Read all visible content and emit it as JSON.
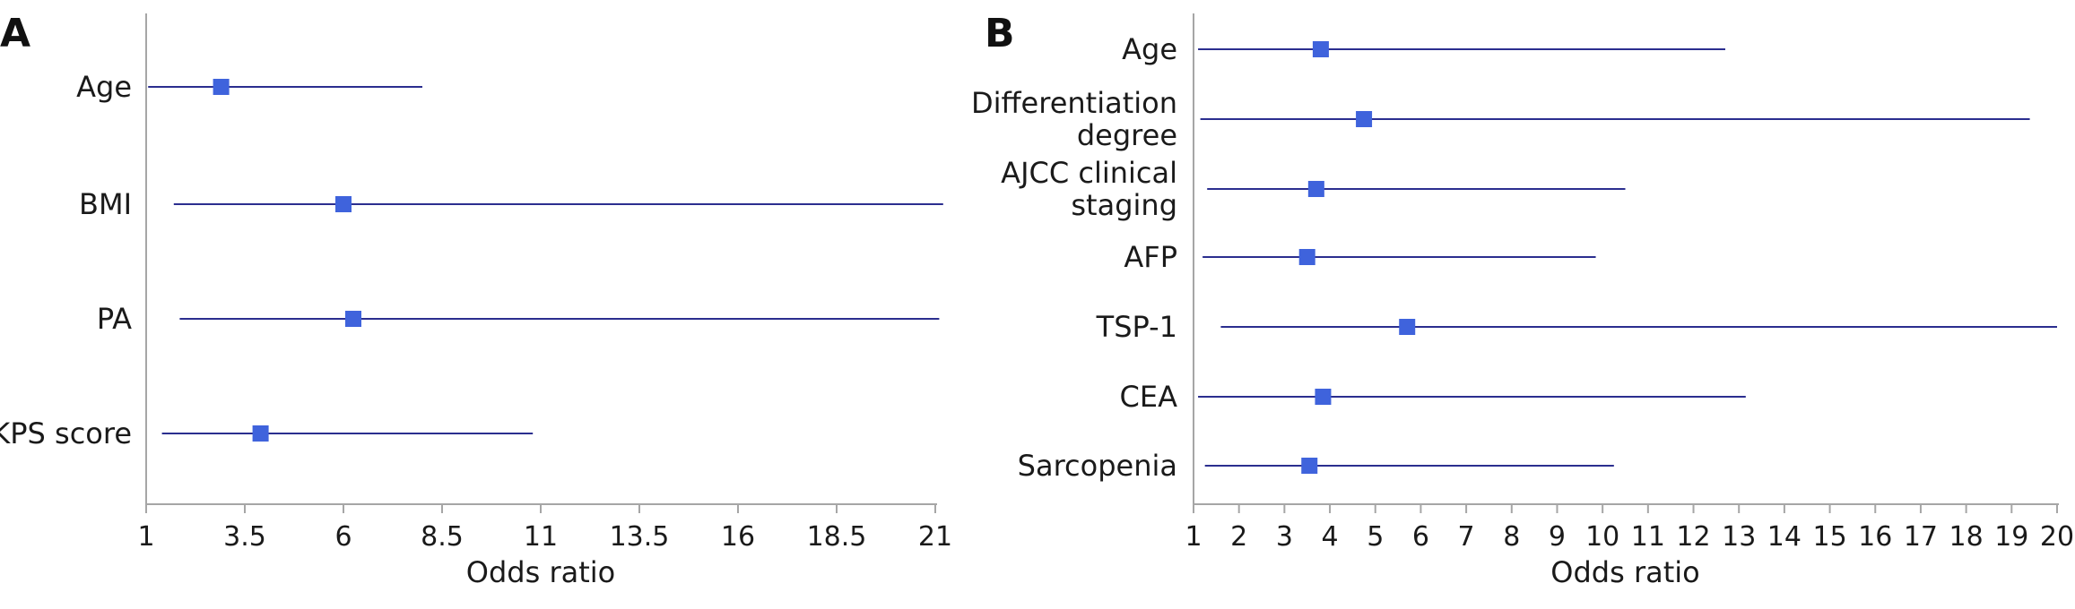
{
  "colors": {
    "ci_line": "#2b2e8f",
    "marker": "#3f63dc",
    "axis": "#a6a6a6",
    "text": "#1a1a1a"
  },
  "chart_data": [
    {
      "type": "forest",
      "panel_label": "A",
      "xlabel": "Odds ratio",
      "xlim": [
        1,
        21
      ],
      "xticks": [
        1,
        3.5,
        6,
        8.5,
        11,
        13.5,
        16,
        18.5,
        21
      ],
      "tick_labels": [
        "1",
        "3.5",
        "6",
        "8.5",
        "11",
        "13.5",
        "16",
        "18.5",
        "21"
      ],
      "rows": [
        {
          "label_lines": [
            "Age"
          ],
          "or": 2.9,
          "lower": 1.05,
          "upper": 8.0
        },
        {
          "label_lines": [
            "BMI"
          ],
          "or": 6.0,
          "lower": 1.7,
          "upper": 21.2
        },
        {
          "label_lines": [
            "PA"
          ],
          "or": 6.25,
          "lower": 1.85,
          "upper": 21.1
        },
        {
          "label_lines": [
            "KPS score"
          ],
          "or": 3.9,
          "lower": 1.4,
          "upper": 10.8
        }
      ]
    },
    {
      "type": "forest",
      "panel_label": "B",
      "xlabel": "Odds ratio",
      "xlim": [
        1,
        20
      ],
      "xticks": [
        1,
        2,
        3,
        4,
        5,
        6,
        7,
        8,
        9,
        10,
        11,
        12,
        13,
        14,
        15,
        16,
        17,
        18,
        19,
        20
      ],
      "tick_labels": [
        "1",
        "2",
        "3",
        "4",
        "5",
        "6",
        "7",
        "8",
        "9",
        "10",
        "11",
        "12",
        "13",
        "14",
        "15",
        "16",
        "17",
        "18",
        "19",
        "20"
      ],
      "rows": [
        {
          "label_lines": [
            "Age"
          ],
          "or": 3.8,
          "lower": 1.1,
          "upper": 12.7
        },
        {
          "label_lines": [
            "Differentiation",
            "degree"
          ],
          "or": 4.75,
          "lower": 1.15,
          "upper": 19.4
        },
        {
          "label_lines": [
            "AJCC clinical",
            "staging"
          ],
          "or": 3.7,
          "lower": 1.3,
          "upper": 10.5
        },
        {
          "label_lines": [
            "AFP"
          ],
          "or": 3.5,
          "lower": 1.2,
          "upper": 9.85
        },
        {
          "label_lines": [
            "TSP-1"
          ],
          "or": 5.7,
          "lower": 1.6,
          "upper": 20.0
        },
        {
          "label_lines": [
            "CEA"
          ],
          "or": 3.85,
          "lower": 1.1,
          "upper": 13.15
        },
        {
          "label_lines": [
            "Sarcopenia"
          ],
          "or": 3.55,
          "lower": 1.25,
          "upper": 10.25
        }
      ]
    }
  ]
}
